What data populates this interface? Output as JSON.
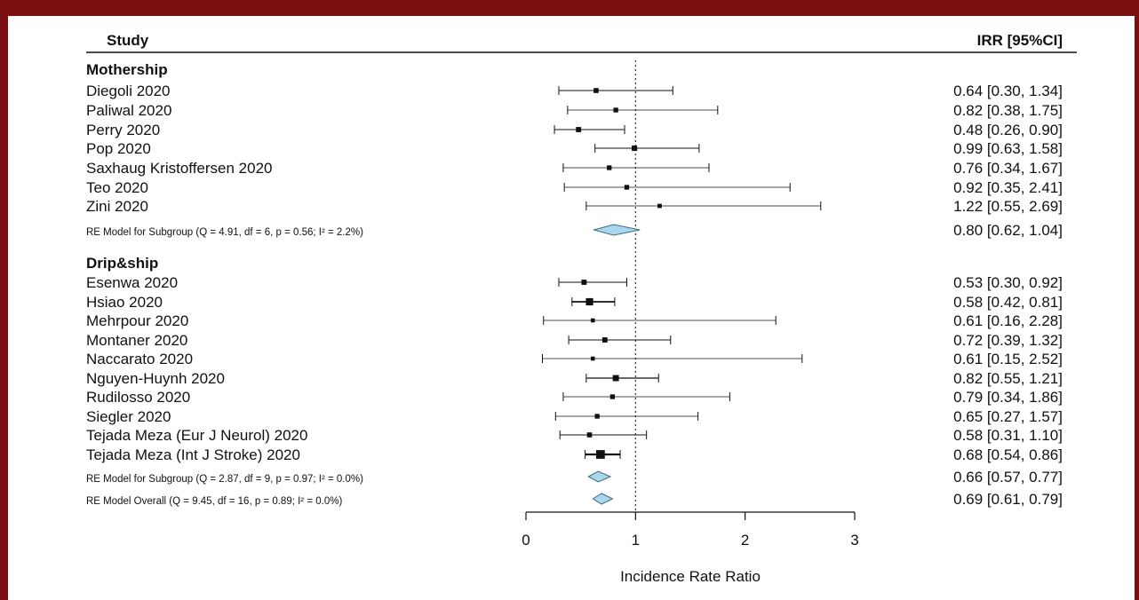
{
  "colors": {
    "frame": "#7a0f12",
    "diamond_fill": "#a9d8ec",
    "diamond_stroke": "#3b6b80",
    "ink": "#111111"
  },
  "chart_data": {
    "type": "forest",
    "header": {
      "study": "Study",
      "estimate": "IRR [95%CI]"
    },
    "xlabel": "Incidence Rate Ratio",
    "xlim": [
      0,
      3
    ],
    "xticks": [
      "0",
      "1",
      "2",
      "3"
    ],
    "reference_line": 1,
    "rows": [
      {
        "kind": "group",
        "label": "Mothership"
      },
      {
        "kind": "study",
        "label": "Diegoli 2020",
        "est": 0.64,
        "lo": 0.3,
        "hi": 1.34,
        "weight": 1.0,
        "text": "0.64 [0.30, 1.34]"
      },
      {
        "kind": "study",
        "label": "Paliwal 2020",
        "est": 0.82,
        "lo": 0.38,
        "hi": 1.75,
        "weight": 0.9,
        "text": "0.82 [0.38, 1.75]"
      },
      {
        "kind": "study",
        "label": "Perry 2020",
        "est": 0.48,
        "lo": 0.26,
        "hi": 0.9,
        "weight": 1.1,
        "text": "0.48 [0.26, 0.90]"
      },
      {
        "kind": "study",
        "label": "Pop 2020",
        "est": 0.99,
        "lo": 0.63,
        "hi": 1.58,
        "weight": 1.2,
        "text": "0.99 [0.63, 1.58]"
      },
      {
        "kind": "study",
        "label": "Saxhaug Kristoffersen 2020",
        "est": 0.76,
        "lo": 0.34,
        "hi": 1.67,
        "weight": 0.9,
        "text": "0.76 [0.34, 1.67]"
      },
      {
        "kind": "study",
        "label": "Teo 2020",
        "est": 0.92,
        "lo": 0.35,
        "hi": 2.41,
        "weight": 0.9,
        "text": "0.92 [0.35, 2.41]"
      },
      {
        "kind": "study",
        "label": "Zini 2020",
        "est": 1.22,
        "lo": 0.55,
        "hi": 2.69,
        "weight": 0.7,
        "text": "1.22 [0.55, 2.69]"
      },
      {
        "kind": "summary",
        "label": "RE Model for Subgroup (Q = 4.91, df = 6, p = 0.56; I² = 2.2%)",
        "est": 0.8,
        "lo": 0.62,
        "hi": 1.04,
        "text": "0.80 [0.62, 1.04]"
      },
      {
        "kind": "group",
        "label": "Drip&ship"
      },
      {
        "kind": "study",
        "label": "Esenwa 2020",
        "est": 0.53,
        "lo": 0.3,
        "hi": 0.92,
        "weight": 1.1,
        "text": "0.53 [0.30, 0.92]"
      },
      {
        "kind": "study",
        "label": "Hsiao 2020",
        "est": 0.58,
        "lo": 0.42,
        "hi": 0.81,
        "weight": 2.0,
        "text": "0.58 [0.42, 0.81]"
      },
      {
        "kind": "study",
        "label": "Mehrpour 2020",
        "est": 0.61,
        "lo": 0.16,
        "hi": 2.28,
        "weight": 0.6,
        "text": "0.61 [0.16, 2.28]"
      },
      {
        "kind": "study",
        "label": "Montaner 2020",
        "est": 0.72,
        "lo": 0.39,
        "hi": 1.32,
        "weight": 1.1,
        "text": "0.72 [0.39, 1.32]"
      },
      {
        "kind": "study",
        "label": "Naccarato 2020",
        "est": 0.61,
        "lo": 0.15,
        "hi": 2.52,
        "weight": 0.6,
        "text": "0.61 [0.15, 2.52]"
      },
      {
        "kind": "study",
        "label": "Nguyen-Huynh 2020",
        "est": 0.82,
        "lo": 0.55,
        "hi": 1.21,
        "weight": 1.5,
        "text": "0.82 [0.55, 1.21]"
      },
      {
        "kind": "study",
        "label": "Rudilosso 2020",
        "est": 0.79,
        "lo": 0.34,
        "hi": 1.86,
        "weight": 0.9,
        "text": "0.79 [0.34, 1.86]"
      },
      {
        "kind": "study",
        "label": "Siegler 2020",
        "est": 0.65,
        "lo": 0.27,
        "hi": 1.57,
        "weight": 0.9,
        "text": "0.65 [0.27, 1.57]"
      },
      {
        "kind": "study",
        "label": "Tejada Meza (Eur J Neurol) 2020",
        "est": 0.58,
        "lo": 0.31,
        "hi": 1.1,
        "weight": 1.0,
        "text": "0.58 [0.31, 1.10]"
      },
      {
        "kind": "study",
        "label": "Tejada Meza (Int J Stroke) 2020",
        "est": 0.68,
        "lo": 0.54,
        "hi": 0.86,
        "weight": 2.6,
        "text": "0.68 [0.54, 0.86]"
      },
      {
        "kind": "summary",
        "label": "RE Model for Subgroup (Q = 2.87, df = 9, p = 0.97; I² = 0.0%)",
        "est": 0.66,
        "lo": 0.57,
        "hi": 0.77,
        "text": "0.66 [0.57, 0.77]"
      },
      {
        "kind": "summary",
        "label": "RE Model Overall (Q = 9.45, df = 16, p = 0.89; I² = 0.0%)",
        "est": 0.69,
        "lo": 0.61,
        "hi": 0.79,
        "text": "0.69 [0.61, 0.79]"
      }
    ]
  }
}
